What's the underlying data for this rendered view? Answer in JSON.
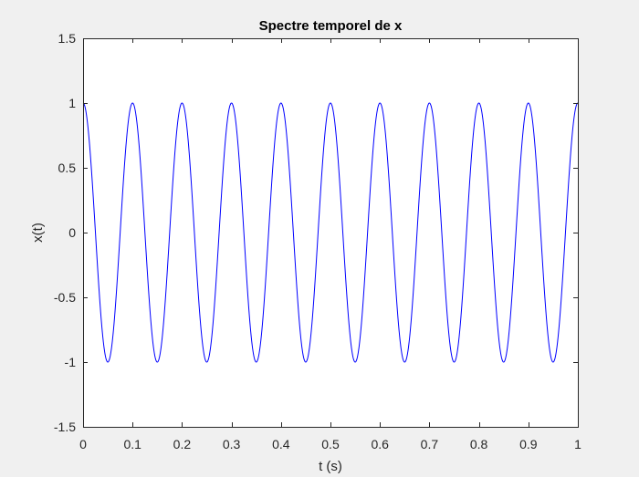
{
  "chart_data": {
    "type": "line",
    "title": "Spectre temporel de x",
    "xlabel": "t (s)",
    "ylabel": "x(t)",
    "xlim": [
      0,
      1
    ],
    "ylim": [
      -1.5,
      1.5
    ],
    "x_ticks": [
      0,
      0.1,
      0.2,
      0.3,
      0.4,
      0.5,
      0.6,
      0.7,
      0.8,
      0.9,
      1
    ],
    "x_tick_labels": [
      "0",
      "0.1",
      "0.2",
      "0.3",
      "0.4",
      "0.5",
      "0.6",
      "0.7",
      "0.8",
      "0.9",
      "1"
    ],
    "y_ticks": [
      -1.5,
      -1,
      -0.5,
      0,
      0.5,
      1,
      1.5
    ],
    "y_tick_labels": [
      "-1.5",
      "-1",
      "-0.5",
      "0",
      "0.5",
      "1",
      "1.5"
    ],
    "grid": false,
    "series": [
      {
        "function": "cos(2*pi*10*t)",
        "amplitude": 1,
        "frequency_hz": 10,
        "t_start": 0,
        "t_end": 1,
        "color": "#0000ff"
      }
    ]
  },
  "colors": {
    "figure_background": "#f0f0f0",
    "axes_background": "#ffffff",
    "axis_color": "#262626",
    "line_color": "#0000ff"
  }
}
